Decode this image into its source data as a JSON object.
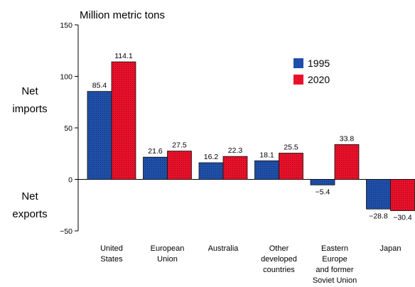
{
  "chart_data": {
    "type": "bar",
    "title": "Million metric tons",
    "upper_label_lines": [
      "Net",
      "imports"
    ],
    "lower_label_lines": [
      "Net",
      "exports"
    ],
    "categories": [
      [
        "United",
        "States"
      ],
      [
        "European",
        "Union"
      ],
      [
        "Australia"
      ],
      [
        "Other",
        "developed",
        "countries"
      ],
      [
        "Eastern",
        "Europe",
        "and former",
        "Soviet Union"
      ],
      [
        "Japan"
      ]
    ],
    "series": [
      {
        "name": "1995",
        "color": "#1f4fa8",
        "values": [
          85.4,
          21.6,
          16.2,
          18.1,
          -5.4,
          -28.8
        ],
        "labels": [
          "85.4",
          "21.6",
          "16.2",
          "18.1",
          "−5.4",
          "−28.8"
        ]
      },
      {
        "name": "2020",
        "color": "#e8102a",
        "values": [
          114.1,
          27.5,
          22.3,
          25.5,
          33.8,
          -30.4
        ],
        "labels": [
          "114.1",
          "27.5",
          "22.3",
          "25.5",
          "33.8",
          "−30.4"
        ]
      }
    ],
    "ylim": [
      -50,
      150
    ],
    "yticks": [
      -50,
      0,
      50,
      100,
      150
    ],
    "ytick_labels": [
      "−50",
      "0",
      "50",
      "100",
      "150"
    ],
    "legend_position": "top-right"
  }
}
